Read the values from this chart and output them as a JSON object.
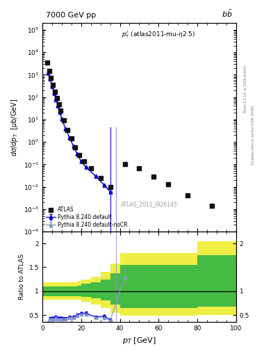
{
  "title_left": "7000 GeV pp",
  "title_right": "b$\\bar{b}$",
  "annotation": "$p_T^l$ (atlas2011-mu-$\\eta$2.5)",
  "watermark": "ATLAS_2011_I926145",
  "ylabel_main": "$d\\sigma/dp_T$  [$\\mu$b/GeV]",
  "ylabel_ratio": "Ratio to ATLAS",
  "xlabel": "$p_T$ [GeV]",
  "right_label": "Rivet 3.1.10, $\\geq$ 500k events",
  "right_label2": "mcplots.cern.ch [arXiv:1306.3436]",
  "atlas_x": [
    2.5,
    3.5,
    4.5,
    5.5,
    6.5,
    7.5,
    8.5,
    9.5,
    11,
    13,
    15,
    17,
    19,
    21.5,
    25,
    30,
    35,
    42.5,
    50,
    57.5,
    65,
    75,
    87.5
  ],
  "atlas_y": [
    3500,
    1500,
    700,
    350,
    175,
    90,
    48,
    25,
    9.0,
    3.5,
    1.4,
    0.58,
    0.26,
    0.14,
    0.065,
    0.025,
    0.01,
    0.1,
    0.065,
    0.028,
    0.013,
    0.004,
    0.0014
  ],
  "pythia_x": [
    3,
    4,
    5,
    6,
    7,
    8,
    9,
    10,
    12,
    14,
    16,
    18,
    20,
    22.5,
    27.5,
    32,
    35
  ],
  "pythia_y": [
    1200,
    650,
    310,
    155,
    80,
    42,
    22,
    11,
    3.8,
    1.6,
    0.65,
    0.29,
    0.14,
    0.075,
    0.03,
    0.012,
    0.006
  ],
  "pythia_yerr_lo": [
    60,
    32,
    15,
    8,
    4,
    2.1,
    1.1,
    0.55,
    0.19,
    0.08,
    0.033,
    0.014,
    0.007,
    0.004,
    0.0015,
    0.0006,
    0.0003
  ],
  "pythia_yerr_hi": [
    60,
    32,
    15,
    8,
    4,
    2.1,
    1.1,
    0.55,
    0.19,
    0.08,
    0.033,
    0.014,
    0.007,
    0.004,
    0.0015,
    0.0006,
    0.0003
  ],
  "pythia_nocr_x": [
    3,
    4,
    5,
    6,
    7,
    8,
    9,
    10,
    12,
    14,
    16,
    18,
    20,
    22.5,
    27.5,
    32,
    35
  ],
  "pythia_nocr_y": [
    1150,
    620,
    295,
    148,
    76,
    40,
    21,
    10.5,
    3.7,
    1.55,
    0.62,
    0.28,
    0.135,
    0.072,
    0.029,
    0.011,
    0.006
  ],
  "pythia_nocr_yerr_lo": [
    58,
    31,
    15,
    7.5,
    3.8,
    2.0,
    1.05,
    0.52,
    0.185,
    0.077,
    0.031,
    0.014,
    0.0068,
    0.0036,
    0.00145,
    0.00055,
    0.0003
  ],
  "pythia_nocr_yerr_hi": [
    58,
    31,
    15,
    7.5,
    3.8,
    2.0,
    1.05,
    0.52,
    0.185,
    0.077,
    0.031,
    0.014,
    0.0068,
    0.0036,
    0.00145,
    0.00055,
    0.0003
  ],
  "pythia_vline_x": 35.0,
  "pythia_nocr_vline_x": 38.0,
  "ratio_yellow_edges": [
    0,
    3,
    5,
    7,
    10,
    13,
    15,
    18,
    20,
    25,
    30,
    35,
    40,
    45,
    55,
    65,
    80,
    100
  ],
  "ratio_yellow_lo": [
    0.82,
    0.82,
    0.82,
    0.82,
    0.82,
    0.82,
    0.82,
    0.82,
    0.78,
    0.72,
    0.65,
    0.55,
    0.48,
    0.48,
    0.48,
    0.48,
    0.5,
    0.52
  ],
  "ratio_yellow_hi": [
    1.18,
    1.18,
    1.18,
    1.18,
    1.18,
    1.18,
    1.18,
    1.22,
    1.25,
    1.3,
    1.4,
    1.58,
    1.8,
    1.8,
    1.8,
    1.8,
    2.05,
    2.2
  ],
  "ratio_green_edges": [
    0,
    3,
    5,
    7,
    10,
    13,
    15,
    18,
    20,
    25,
    30,
    35,
    40,
    45,
    55,
    65,
    80,
    100
  ],
  "ratio_green_lo": [
    0.9,
    0.9,
    0.9,
    0.9,
    0.9,
    0.9,
    0.9,
    0.9,
    0.88,
    0.85,
    0.8,
    0.72,
    0.65,
    0.65,
    0.65,
    0.65,
    0.68,
    0.7
  ],
  "ratio_green_hi": [
    1.1,
    1.1,
    1.1,
    1.1,
    1.1,
    1.1,
    1.1,
    1.12,
    1.15,
    1.18,
    1.25,
    1.38,
    1.55,
    1.55,
    1.55,
    1.55,
    1.75,
    1.9
  ],
  "ratio_pythia_x": [
    3,
    4,
    5,
    6,
    7,
    8,
    9,
    10,
    12,
    14,
    16,
    18,
    20,
    22.5,
    27.5,
    32,
    35
  ],
  "ratio_pythia_y": [
    0.34,
    0.43,
    0.44,
    0.44,
    0.46,
    0.44,
    0.44,
    0.44,
    0.43,
    0.46,
    0.46,
    0.5,
    0.54,
    0.54,
    0.46,
    0.48,
    0.4
  ],
  "ratio_pythia_yerr_lo": [
    0.02,
    0.03,
    0.022,
    0.023,
    0.023,
    0.022,
    0.022,
    0.022,
    0.022,
    0.023,
    0.024,
    0.024,
    0.026,
    0.027,
    0.023,
    0.024,
    0.025
  ],
  "ratio_pythia_yerr_hi": [
    0.02,
    0.03,
    0.022,
    0.023,
    0.023,
    0.022,
    0.022,
    0.022,
    0.022,
    0.023,
    0.024,
    0.024,
    0.026,
    0.027,
    0.023,
    0.024,
    0.025
  ],
  "ratio_nocr_x": [
    3,
    4,
    5,
    6,
    7,
    8,
    9,
    10,
    12,
    14,
    16,
    18,
    20,
    22.5,
    27.5,
    32,
    35,
    42.5
  ],
  "ratio_nocr_y": [
    0.33,
    0.41,
    0.42,
    0.42,
    0.44,
    0.42,
    0.42,
    0.42,
    0.42,
    0.44,
    0.44,
    0.48,
    0.52,
    0.51,
    0.45,
    0.44,
    0.38,
    1.3
  ],
  "ratio_nocr_yerr_lo": [
    0.02,
    0.025,
    0.021,
    0.021,
    0.022,
    0.021,
    0.021,
    0.021,
    0.021,
    0.022,
    0.022,
    0.022,
    0.025,
    0.026,
    0.022,
    0.022,
    0.019,
    0.15
  ],
  "ratio_nocr_yerr_hi": [
    0.02,
    0.025,
    0.021,
    0.021,
    0.022,
    0.021,
    0.021,
    0.021,
    0.021,
    0.022,
    0.022,
    0.022,
    0.025,
    0.026,
    0.022,
    0.022,
    0.019,
    0.15
  ],
  "color_atlas": "#111111",
  "color_pythia": "#0000dd",
  "color_pythia_nocr": "#8899cc",
  "color_green": "#44bb44",
  "color_yellow": "#eeee44",
  "ylim_main": [
    0.0001,
    200000.0
  ],
  "ylim_ratio": [
    0.35,
    2.25
  ],
  "xlim": [
    0,
    100
  ]
}
